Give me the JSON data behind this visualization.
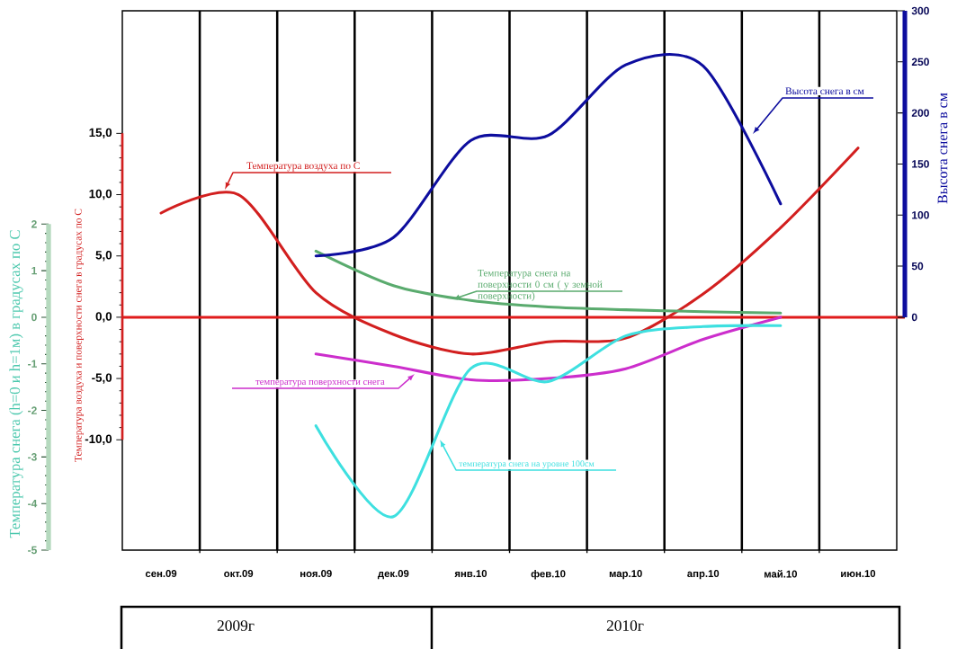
{
  "chart_data": {
    "type": "line",
    "categories": [
      "сен.09",
      "окт.09",
      "ноя.09",
      "дек.09",
      "янв.10",
      "фев.10",
      "мар.10",
      "апр.10",
      "май.10",
      "июн.10"
    ],
    "series": [
      {
        "name": "Температура воздуха по С",
        "color": "#d21f1f",
        "values": [
          8.5,
          10.0,
          2.0,
          -1.4,
          -3.0,
          -2.0,
          -1.7,
          1.9,
          7.3,
          13.8
        ]
      },
      {
        "name": "Высота снега в см",
        "color": "#0d0d9e",
        "axis": "y2",
        "values": [
          null,
          null,
          60,
          78,
          173,
          178,
          247,
          246,
          111,
          null
        ]
      },
      {
        "name": "Температура снега на поверхности 0 см ( у земной поверхности)",
        "color": "#5aab6e",
        "axis": "y3",
        "values": [
          null,
          null,
          1.42,
          0.68,
          0.36,
          0.22,
          0.16,
          0.12,
          0.09,
          null
        ]
      },
      {
        "name": "температура поверхности снега",
        "color": "#cc2ecc",
        "values": [
          null,
          null,
          -3.0,
          -4.0,
          -5.1,
          -5.0,
          -4.2,
          -1.8,
          0.0,
          null
        ]
      },
      {
        "name": "температура снега на уровне 100см",
        "color": "#3ee0e0",
        "axis": "y3",
        "values": [
          null,
          null,
          -2.33,
          -4.28,
          -1.1,
          -1.38,
          -0.4,
          -0.2,
          -0.18,
          null
        ]
      }
    ],
    "ylabel": "Температура воздуха и поверхности снега в градусах по С",
    "y2label": "Высота снега в см",
    "y3label": "Температура снега (h=0 и h=1м) в градусах по С",
    "ylim": [
      -19,
      25
    ],
    "yticks": [
      {
        "value": -10,
        "label": "-10,0"
      },
      {
        "value": -5,
        "label": "-5,0"
      },
      {
        "value": 0,
        "label": "0,0"
      },
      {
        "value": 5,
        "label": "5,0"
      },
      {
        "value": 10,
        "label": "10,0"
      },
      {
        "value": 15,
        "label": "15,0"
      }
    ],
    "y2lim": [
      0,
      300
    ],
    "y2ticks": [
      0,
      50,
      100,
      150,
      200,
      250,
      300
    ],
    "y3lim": [
      -5,
      2
    ],
    "y3ticks": [
      -5,
      -4,
      -3,
      -2,
      -1,
      0,
      1,
      2
    ],
    "grid": "x",
    "ref_lines": [
      {
        "axis": "y",
        "value": 0,
        "color": "#e01b1b"
      }
    ],
    "annotations": [
      "2009г",
      "2010г"
    ]
  }
}
